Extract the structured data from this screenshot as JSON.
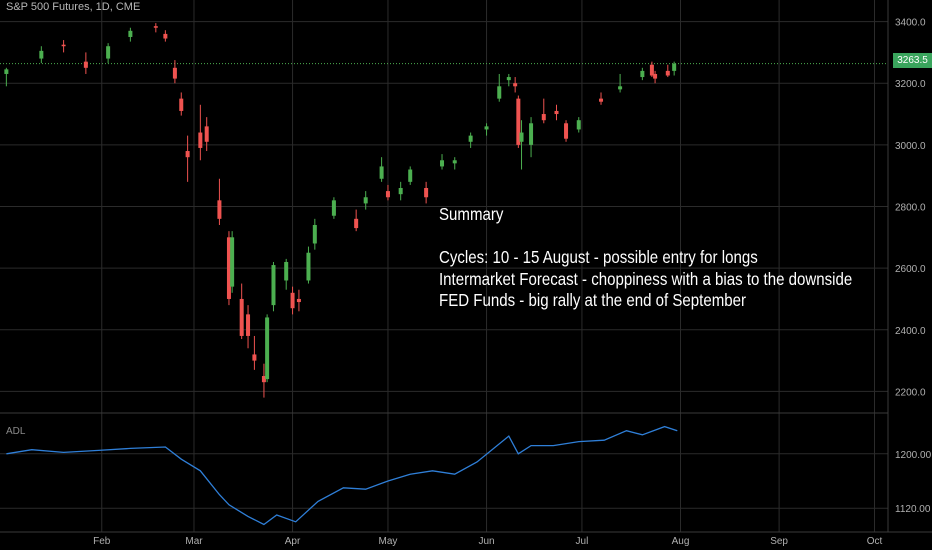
{
  "header": {
    "symbol": "S&P 500 Futures, 1D, CME"
  },
  "indicator": {
    "label": "ADL"
  },
  "last_price": {
    "label": "3263.5",
    "value": 3263.5,
    "color": "#3aa55d"
  },
  "annotation": {
    "title": "Summary",
    "lines": [
      "Cycles: 10 - 15 August - possible entry for longs",
      "Intermarket Forecast - choppiness with a bias to the downside",
      "FED Funds - big rally at the end of September"
    ]
  },
  "colors": {
    "up": "#4caf50",
    "down": "#ef5350",
    "adl_line": "#2f7fd8",
    "grid": "#2b2b2b",
    "price_line": "#4caf50"
  },
  "chart_data": [
    {
      "type": "candlestick",
      "title": "S&P 500 Futures, 1D, CME",
      "ylim": [
        2130,
        3470
      ],
      "y_ticks": [
        "2200.0",
        "2400.0",
        "2600.0",
        "2800.0",
        "3000.0",
        "3200.0",
        "3400.0"
      ],
      "x_ticks": [
        "Feb",
        "Mar",
        "Apr",
        "May",
        "Jun",
        "Jul",
        "Aug",
        "Sep",
        "Oct"
      ],
      "grid": true,
      "price_line": 3263.5,
      "x_dates": [
        "2020-01-02",
        "2020-01-13",
        "2020-01-20",
        "2020-01-27",
        "2020-02-03",
        "2020-02-10",
        "2020-02-18",
        "2020-02-21",
        "2020-02-24",
        "2020-02-26",
        "2020-02-28",
        "2020-03-03",
        "2020-03-05",
        "2020-03-09",
        "2020-03-12",
        "2020-03-13",
        "2020-03-16",
        "2020-03-18",
        "2020-03-20",
        "2020-03-23",
        "2020-03-24",
        "2020-03-26",
        "2020-03-30",
        "2020-04-01",
        "2020-04-03",
        "2020-04-06",
        "2020-04-08",
        "2020-04-14",
        "2020-04-21",
        "2020-04-24",
        "2020-04-29",
        "2020-05-01",
        "2020-05-05",
        "2020-05-08",
        "2020-05-13",
        "2020-05-18",
        "2020-05-22",
        "2020-05-27",
        "2020-06-01",
        "2020-06-05",
        "2020-06-08",
        "2020-06-10",
        "2020-06-11",
        "2020-06-12",
        "2020-06-15",
        "2020-06-19",
        "2020-06-23",
        "2020-06-26",
        "2020-06-30",
        "2020-07-07",
        "2020-07-13",
        "2020-07-20",
        "2020-07-23",
        "2020-07-24",
        "2020-07-28",
        "2020-07-30"
      ],
      "ohlc": [
        [
          3230,
          3250,
          3190,
          3245
        ],
        [
          3280,
          3320,
          3265,
          3305
        ],
        [
          3325,
          3340,
          3300,
          3320
        ],
        [
          3270,
          3300,
          3230,
          3250
        ],
        [
          3280,
          3330,
          3265,
          3320
        ],
        [
          3350,
          3380,
          3335,
          3370
        ],
        [
          3385,
          3395,
          3365,
          3380
        ],
        [
          3360,
          3372,
          3335,
          3345
        ],
        [
          3250,
          3275,
          3200,
          3215
        ],
        [
          3150,
          3170,
          3095,
          3110
        ],
        [
          2980,
          3030,
          2880,
          2960
        ],
        [
          3040,
          3130,
          2950,
          2990
        ],
        [
          3060,
          3090,
          2980,
          3010
        ],
        [
          2820,
          2890,
          2740,
          2760
        ],
        [
          2700,
          2720,
          2480,
          2500
        ],
        [
          2540,
          2720,
          2520,
          2700
        ],
        [
          2500,
          2550,
          2370,
          2380
        ],
        [
          2450,
          2480,
          2340,
          2380
        ],
        [
          2320,
          2380,
          2270,
          2300
        ],
        [
          2250,
          2290,
          2180,
          2230
        ],
        [
          2240,
          2450,
          2230,
          2440
        ],
        [
          2480,
          2620,
          2460,
          2610
        ],
        [
          2560,
          2630,
          2530,
          2620
        ],
        [
          2520,
          2540,
          2450,
          2470
        ],
        [
          2500,
          2530,
          2460,
          2490
        ],
        [
          2560,
          2670,
          2550,
          2650
        ],
        [
          2680,
          2760,
          2660,
          2740
        ],
        [
          2770,
          2830,
          2760,
          2820
        ],
        [
          2760,
          2790,
          2720,
          2730
        ],
        [
          2810,
          2850,
          2790,
          2830
        ],
        [
          2890,
          2960,
          2880,
          2930
        ],
        [
          2850,
          2870,
          2820,
          2830
        ],
        [
          2840,
          2880,
          2820,
          2860
        ],
        [
          2880,
          2930,
          2870,
          2920
        ],
        [
          2860,
          2880,
          2810,
          2830
        ],
        [
          2930,
          2970,
          2920,
          2950
        ],
        [
          2940,
          2960,
          2920,
          2950
        ],
        [
          3010,
          3040,
          2990,
          3030
        ],
        [
          3050,
          3070,
          3030,
          3060
        ],
        [
          3150,
          3230,
          3140,
          3190
        ],
        [
          3210,
          3230,
          3190,
          3220
        ],
        [
          3200,
          3220,
          3170,
          3190
        ],
        [
          3150,
          3160,
          2990,
          3000
        ],
        [
          3010,
          3080,
          2920,
          3040
        ],
        [
          3000,
          3090,
          2960,
          3070
        ],
        [
          3100,
          3150,
          3070,
          3080
        ],
        [
          3110,
          3130,
          3080,
          3100
        ],
        [
          3070,
          3080,
          3010,
          3020
        ],
        [
          3050,
          3090,
          3040,
          3080
        ],
        [
          3150,
          3170,
          3130,
          3140
        ],
        [
          3180,
          3230,
          3170,
          3190
        ],
        [
          3220,
          3250,
          3210,
          3240
        ],
        [
          3260,
          3270,
          3220,
          3225
        ],
        [
          3230,
          3240,
          3200,
          3215
        ],
        [
          3240,
          3260,
          3220,
          3225
        ],
        [
          3240,
          3270,
          3225,
          3263.5
        ]
      ]
    },
    {
      "type": "line",
      "title": "ADL",
      "ylim": [
        1085,
        1260
      ],
      "y_ticks": [
        "1120.00",
        "1200.00"
      ],
      "series": [
        {
          "name": "ADL",
          "x": [
            "2020-01-02",
            "2020-01-10",
            "2020-01-20",
            "2020-01-31",
            "2020-02-10",
            "2020-02-21",
            "2020-02-26",
            "2020-03-03",
            "2020-03-09",
            "2020-03-12",
            "2020-03-18",
            "2020-03-23",
            "2020-03-27",
            "2020-04-02",
            "2020-04-09",
            "2020-04-17",
            "2020-04-24",
            "2020-05-01",
            "2020-05-08",
            "2020-05-15",
            "2020-05-22",
            "2020-05-29",
            "2020-06-08",
            "2020-06-11",
            "2020-06-15",
            "2020-06-22",
            "2020-06-30",
            "2020-07-08",
            "2020-07-15",
            "2020-07-20",
            "2020-07-27",
            "2020-07-31"
          ],
          "values": [
            1200,
            1206,
            1202,
            1205,
            1208,
            1210,
            1192,
            1175,
            1140,
            1125,
            1108,
            1096,
            1110,
            1100,
            1130,
            1150,
            1148,
            1160,
            1170,
            1175,
            1170,
            1188,
            1226,
            1200,
            1212,
            1212,
            1218,
            1220,
            1234,
            1228,
            1240,
            1234
          ]
        }
      ]
    }
  ]
}
